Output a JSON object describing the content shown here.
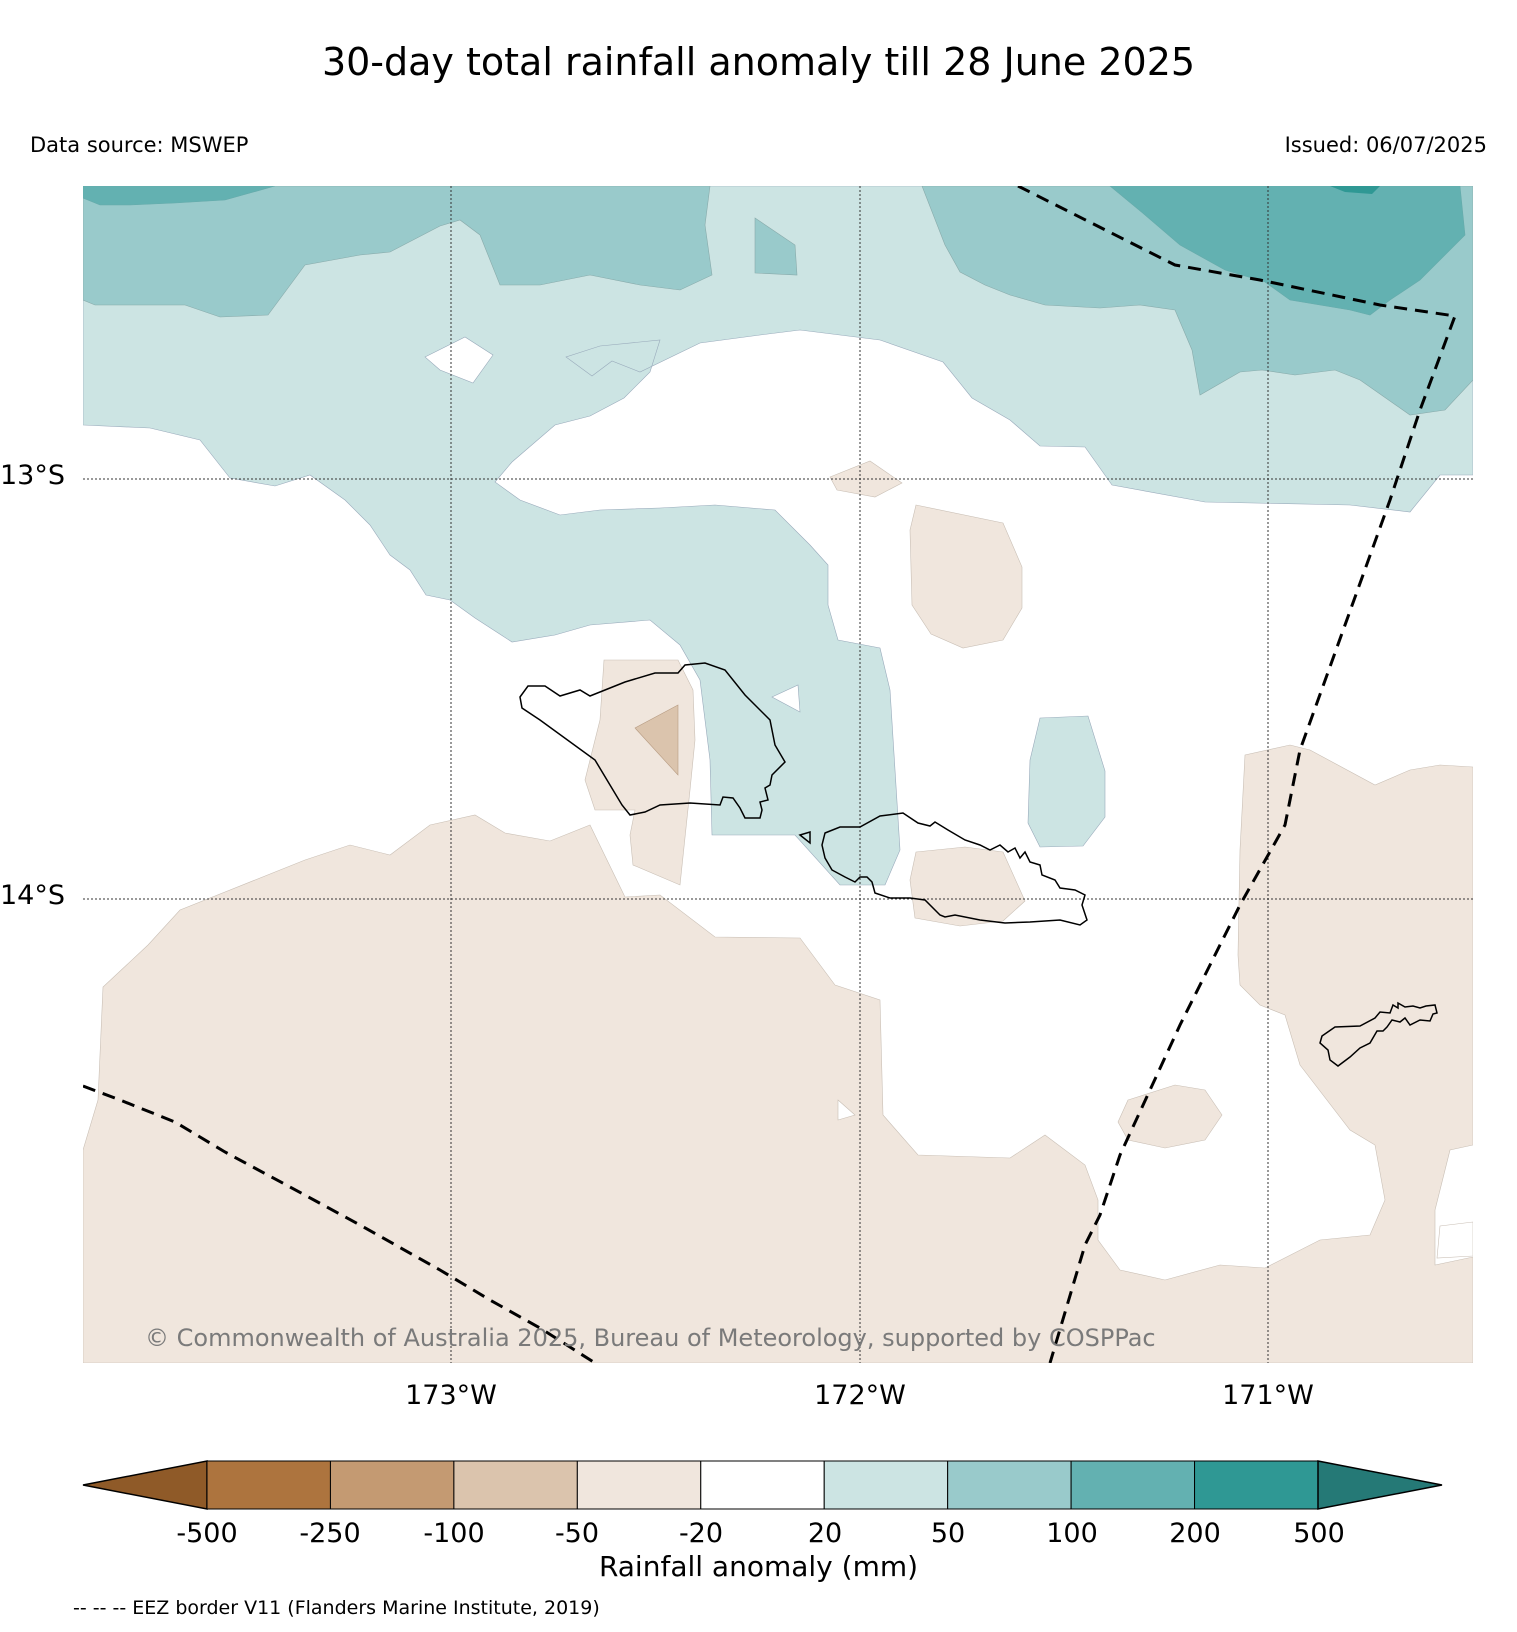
{
  "title": "30-day total rainfall anomaly till 28 June 2025",
  "data_source": "Data source: MSWEP",
  "issued": "Issued: 06/07/2025",
  "latitude_labels": [
    "13°S",
    "14°S"
  ],
  "longitude_labels": [
    "173°W",
    "172°W",
    "171°W"
  ],
  "copyright": "© Commonwealth of Australia 2025, Bureau of Meteorology, supported by COSPPac",
  "colorbar": {
    "label": "Rainfall anomaly (mm)",
    "ticks": [
      "-500",
      "-250",
      "-100",
      "-50",
      "-20",
      "20",
      "50",
      "100",
      "200",
      "500"
    ],
    "colors": [
      "#8f5a28",
      "#ad743e",
      "#c49a72",
      "#dbc4ad",
      "#f0e6dd",
      "#ffffff",
      "#cce4e3",
      "#99cacb",
      "#63b1b1",
      "#2f9894",
      "#257976"
    ]
  },
  "legend_note": "-- -- -- EEZ border V11 (Flanders Marine Institute, 2019)"
}
